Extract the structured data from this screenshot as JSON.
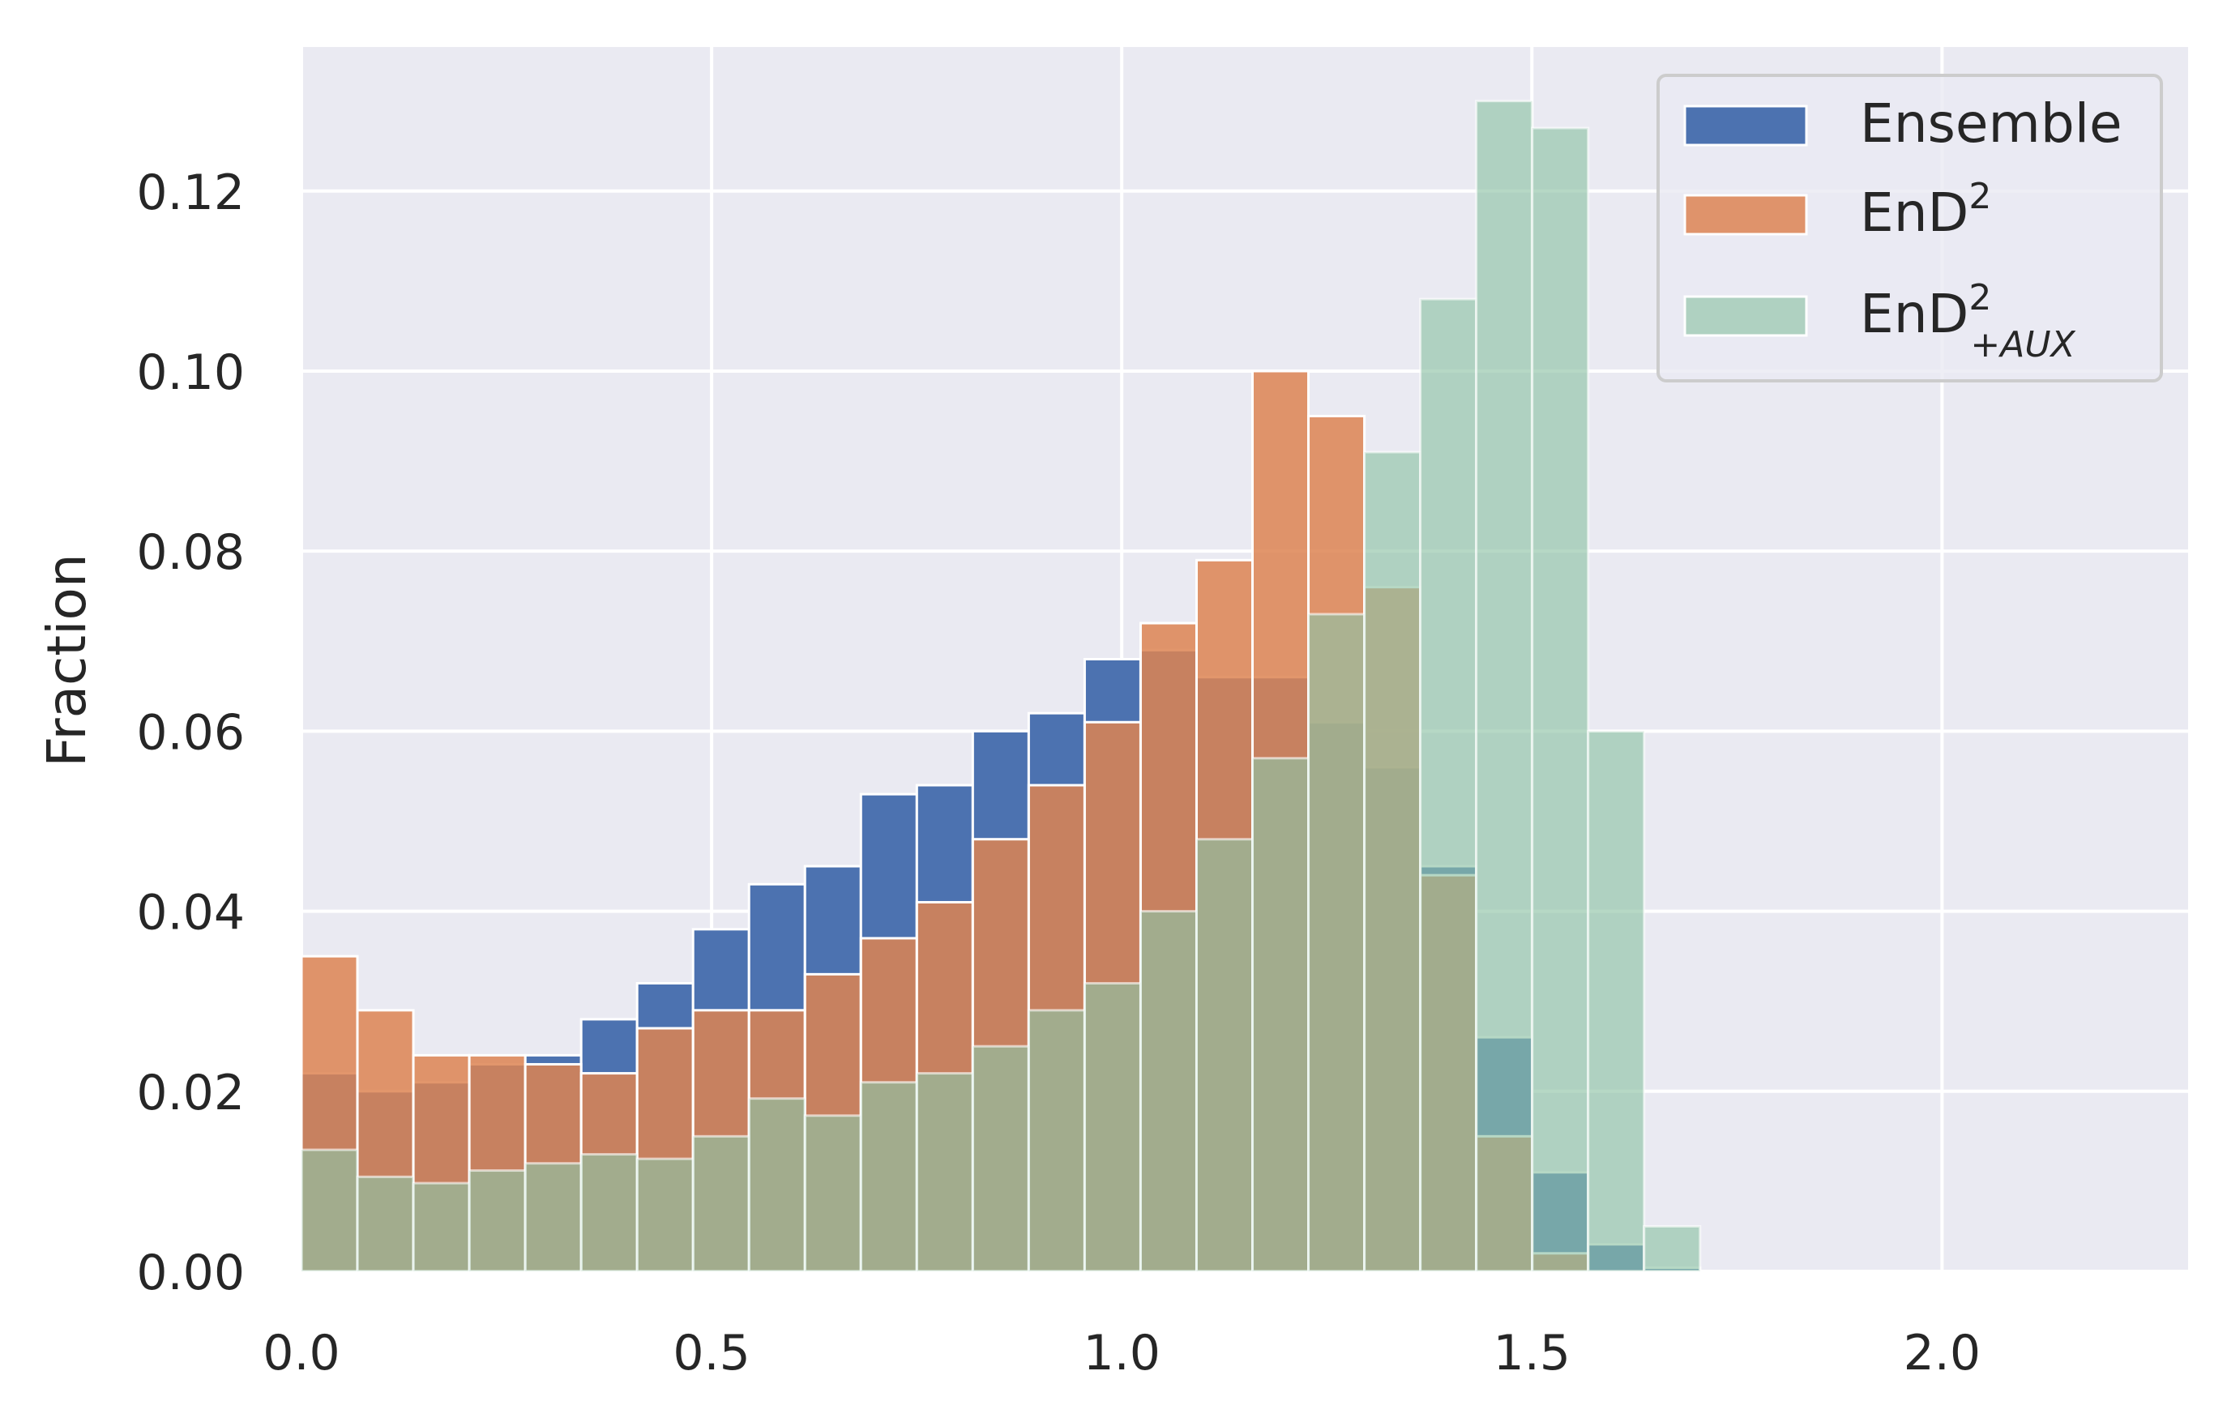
{
  "chart_data": {
    "type": "bar",
    "xlabel": "",
    "ylabel": "Fraction",
    "xlim": [
      0,
      2.3
    ],
    "ylim": [
      0,
      0.136
    ],
    "xticks": [
      {
        "value": 0.0,
        "label": "0.0"
      },
      {
        "value": 0.5,
        "label": "0.5"
      },
      {
        "value": 1.0,
        "label": "1.0"
      },
      {
        "value": 1.5,
        "label": "1.5"
      },
      {
        "value": 2.0,
        "label": "2.0"
      }
    ],
    "yticks": [
      {
        "value": 0.0,
        "label": "0.00"
      },
      {
        "value": 0.02,
        "label": "0.02"
      },
      {
        "value": 0.04,
        "label": "0.04"
      },
      {
        "value": 0.06,
        "label": "0.06"
      },
      {
        "value": 0.08,
        "label": "0.08"
      },
      {
        "value": 0.1,
        "label": "0.10"
      },
      {
        "value": 0.12,
        "label": "0.12"
      }
    ],
    "grid": true,
    "legend_position": "top-right",
    "bin_edges_start": 0.0,
    "bin_width": 0.0682,
    "series": [
      {
        "name": "Ensemble",
        "legend_text": "Ensemble",
        "color": "#4c72b0",
        "opacity": 1.0,
        "values": [
          0.022,
          0.02,
          0.021,
          0.023,
          0.024,
          0.028,
          0.032,
          0.038,
          0.043,
          0.045,
          0.053,
          0.054,
          0.06,
          0.062,
          0.068,
          0.069,
          0.066,
          0.066,
          0.061,
          0.056,
          0.045,
          0.026,
          0.011,
          0.003,
          0.0004
        ]
      },
      {
        "name": "EnD2",
        "legend_text": "EnD",
        "legend_sup": "2",
        "color": "#dd8452",
        "opacity": 0.85,
        "values": [
          0.035,
          0.029,
          0.024,
          0.024,
          0.023,
          0.022,
          0.027,
          0.029,
          0.029,
          0.033,
          0.037,
          0.041,
          0.048,
          0.054,
          0.061,
          0.072,
          0.079,
          0.1,
          0.095,
          0.076,
          0.044,
          0.015,
          0.002,
          0.0,
          0.0
        ]
      },
      {
        "name": "EnD2+AUX",
        "legend_text": "EnD",
        "legend_sup": "2",
        "legend_sub": "+AUX",
        "color": "#8fc3a6",
        "opacity": 0.65,
        "values": [
          0.0135,
          0.0105,
          0.0098,
          0.0112,
          0.012,
          0.013,
          0.0125,
          0.015,
          0.0192,
          0.0173,
          0.021,
          0.022,
          0.025,
          0.029,
          0.032,
          0.04,
          0.048,
          0.057,
          0.073,
          0.091,
          0.108,
          0.13,
          0.127,
          0.06,
          0.005
        ]
      }
    ]
  }
}
